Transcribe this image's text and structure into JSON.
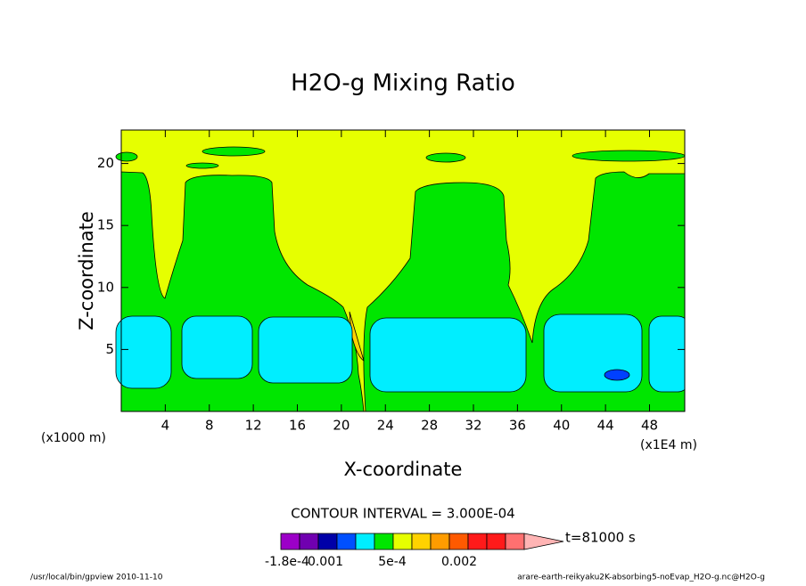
{
  "chart_data": {
    "type": "contour",
    "title": "H2O-g Mixing Ratio",
    "x_label": "X-coordinate",
    "y_label": "Z-coordinate",
    "x_unit_left": "(x1000 m)",
    "x_unit_right": "(x1E4 m)",
    "xlim": [
      0,
      51.2
    ],
    "ylim": [
      0,
      22.7
    ],
    "xticks": [
      4,
      8,
      12,
      16,
      20,
      24,
      28,
      32,
      36,
      40,
      44,
      48
    ],
    "yticks": [
      5,
      10,
      15,
      20
    ],
    "contour_interval": "CONTOUR INTERVAL = 3.000E-04",
    "time_label": "t=81000 s",
    "colorbar_colors": [
      "#9c00c8",
      "#7000b0",
      "#0000a8",
      "#0050ff",
      "#00eeff",
      "#00e600",
      "#e6ff00",
      "#ffd200",
      "#ff9c00",
      "#ff5a00",
      "#ff1a1a",
      "#ff1a1a",
      "#ff7070",
      "#ffb4b4"
    ],
    "colorbar_labels": [
      "-1.8e-4",
      "0.001",
      "5e-4",
      "0.002"
    ],
    "footer_left": "/usr/local/bin/gpview  2010-11-10",
    "footer_right": "arare-earth-reikyaku2K-absorbing5-noEvap_H2O-g.nc@H2O-g"
  }
}
